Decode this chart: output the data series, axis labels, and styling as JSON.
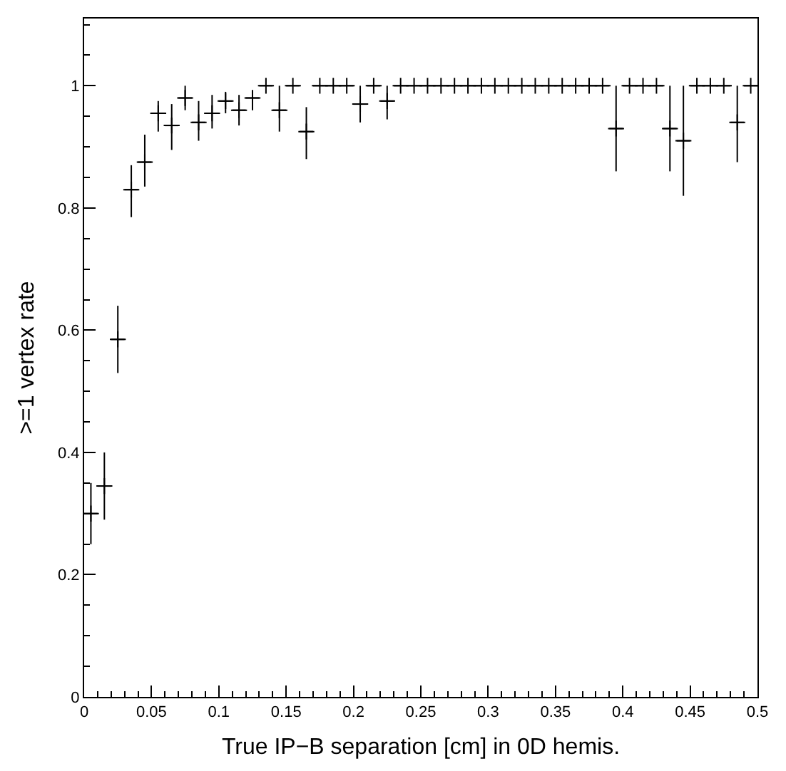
{
  "chart_data": {
    "type": "scatter",
    "xlabel": "True IP−B separation [cm] in 0D hemis.",
    "ylabel": ">=1 vertex rate",
    "marker": "cross",
    "x": [
      0.005,
      0.015,
      0.025,
      0.035,
      0.045,
      0.055,
      0.065,
      0.075,
      0.085,
      0.095,
      0.105,
      0.115,
      0.125,
      0.135,
      0.145,
      0.155,
      0.165,
      0.175,
      0.185,
      0.195,
      0.205,
      0.215,
      0.225,
      0.235,
      0.245,
      0.255,
      0.265,
      0.275,
      0.285,
      0.295,
      0.305,
      0.315,
      0.325,
      0.335,
      0.345,
      0.355,
      0.365,
      0.375,
      0.385,
      0.395,
      0.405,
      0.415,
      0.425,
      0.435,
      0.445,
      0.455,
      0.465,
      0.475,
      0.485,
      0.495
    ],
    "series": [
      {
        "color": "#000000",
        "values": [
          0.3,
          0.345,
          0.585,
          0.83,
          0.875,
          0.955,
          0.935,
          0.98,
          0.94,
          0.955,
          0.975,
          0.96,
          0.98,
          1,
          0.96,
          1,
          0.925,
          1,
          1,
          1,
          0.97,
          1,
          0.975,
          1,
          1,
          1,
          1,
          1,
          1,
          1,
          1,
          1,
          1,
          1,
          1,
          1,
          1,
          1,
          1,
          0.93,
          1,
          1,
          1,
          0.93,
          0.91,
          1,
          1,
          1,
          0.94,
          1
        ],
        "errors": [
          [
            0.25,
            0.35
          ],
          [
            0.29,
            0.4
          ],
          [
            0.53,
            0.64
          ],
          [
            0.785,
            0.87
          ],
          [
            0.835,
            0.92
          ],
          [
            0.925,
            0.975
          ],
          [
            0.895,
            0.97
          ],
          [
            0.96,
            1.0
          ],
          [
            0.91,
            0.975
          ],
          [
            0.93,
            0.985
          ],
          [
            0.955,
            0.99
          ],
          [
            0.935,
            0.985
          ],
          [
            0.96,
            0.99
          ],
          null,
          [
            0.925,
            1.0
          ],
          null,
          [
            0.88,
            0.965
          ],
          null,
          null,
          null,
          [
            0.94,
            1.0
          ],
          null,
          [
            0.945,
            1.0
          ],
          null,
          null,
          null,
          null,
          null,
          null,
          null,
          null,
          null,
          null,
          null,
          null,
          null,
          null,
          null,
          null,
          [
            0.86,
            1.0
          ],
          null,
          null,
          null,
          [
            0.86,
            1.0
          ],
          [
            0.82,
            1.0
          ],
          null,
          null,
          null,
          [
            0.875,
            1.0
          ],
          null
        ],
        "xerrors": [
          0.005,
          0.005,
          0.005,
          0.005,
          0.005,
          0.005,
          0.005,
          0.005,
          0.005,
          0.005,
          0.005,
          0.005,
          0.005,
          0.005,
          0.005,
          0.005,
          0.005,
          0.005,
          0.005,
          0.005,
          0.005,
          0.005,
          0.005,
          0.005,
          0.005,
          0.005,
          0.005,
          0.005,
          0.005,
          0.005,
          0.005,
          0.005,
          0.005,
          0.005,
          0.005,
          0.005,
          0.005,
          0.005,
          0.005,
          0.005,
          0.005,
          0.005,
          0.005,
          0.005,
          0.005,
          0.005,
          0.005,
          0.005,
          0.005,
          0.005
        ]
      }
    ],
    "xlim": [
      0,
      0.5
    ],
    "ylim": [
      0,
      1.11
    ],
    "xticks": [
      0,
      0.05,
      0.1,
      0.15,
      0.2,
      0.25,
      0.3,
      0.35,
      0.4,
      0.45,
      0.5
    ],
    "yticks": [
      0,
      0.2,
      0.4,
      0.6,
      0.8,
      1
    ]
  }
}
